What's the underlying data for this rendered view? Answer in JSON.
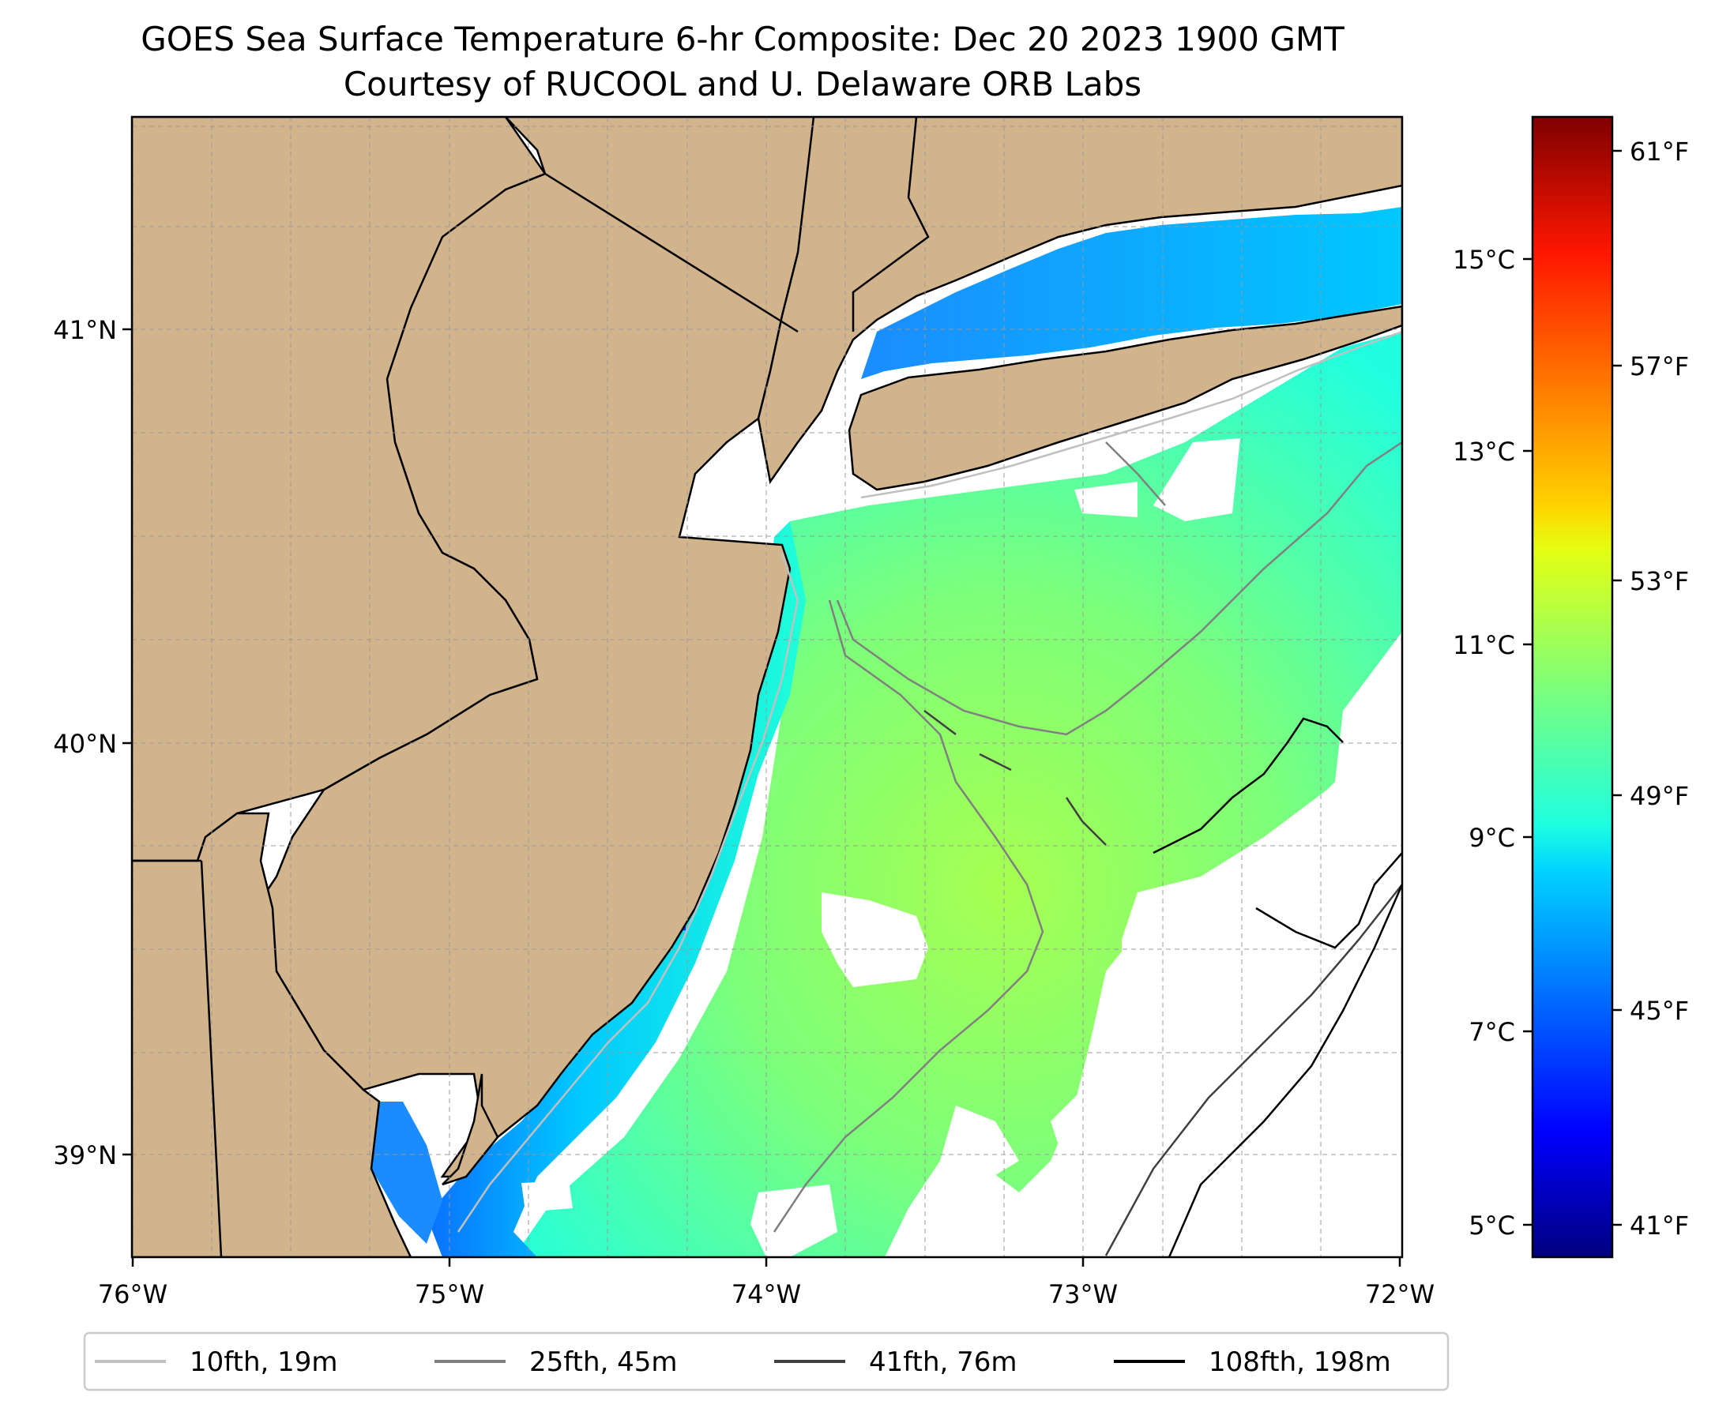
{
  "title_line1": "GOES Sea Surface Temperature 6-hr Composite: Dec 20 2023 1900 GMT",
  "title_line2": "Courtesy of RUCOOL and U. Delaware ORB Labs",
  "map": {
    "lon_ticks": [
      "76°W",
      "75°W",
      "74°W",
      "73°W",
      "72°W"
    ],
    "lat_ticks": [
      "41°N",
      "40°N",
      "39°N"
    ],
    "land_color": "#d2b48c",
    "ocean_color": "#ffffff",
    "gridlines": true
  },
  "colorbar": {
    "colormap": "jet",
    "celsius_ticks": [
      "15°C",
      "13°C",
      "11°C",
      "9°C",
      "7°C",
      "5°C"
    ],
    "fahrenheit_ticks": [
      "61°F",
      "57°F",
      "53°F",
      "49°F",
      "45°F",
      "41°F"
    ]
  },
  "legend": [
    {
      "label": "10fth, 19m",
      "color": "#c0c0c0"
    },
    {
      "label": "25fth, 45m",
      "color": "#808080"
    },
    {
      "label": "41fth, 76m",
      "color": "#404040"
    },
    {
      "label": "108fth, 198m",
      "color": "#000000"
    }
  ],
  "chart_data": {
    "type": "heatmap",
    "title": "GOES Sea Surface Temperature 6-hr Composite: Dec 20 2023 1900 GMT",
    "subtitle": "Courtesy of RUCOOL and U. Delaware ORB Labs",
    "xlim": [
      -76,
      -72
    ],
    "ylim": [
      38.75,
      41.55
    ],
    "x_ticks": [
      -76,
      -75,
      -74,
      -73,
      -72
    ],
    "y_ticks": [
      39,
      40,
      41
    ],
    "colorbar_range_c": [
      4.7,
      16.6
    ],
    "colorbar_c_ticks": [
      5,
      7,
      9,
      11,
      13,
      15
    ],
    "colorbar_f_ticks": [
      41,
      45,
      49,
      53,
      57,
      61
    ],
    "grid": true,
    "legend_position": "bottom"
  }
}
